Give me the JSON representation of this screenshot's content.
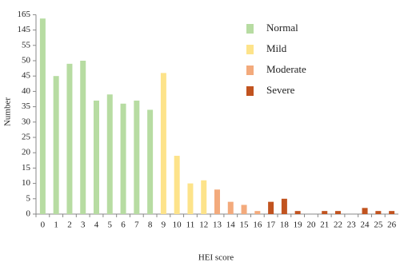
{
  "chart_data": {
    "type": "bar",
    "x_label": "HEI score",
    "y_label": "Number",
    "categories": [
      "0",
      "1",
      "2",
      "3",
      "4",
      "5",
      "6",
      "7",
      "8",
      "9",
      "10",
      "11",
      "12",
      "13",
      "14",
      "15",
      "16",
      "17",
      "18",
      "19",
      "20",
      "21",
      "22",
      "23",
      "24",
      "25",
      "26"
    ],
    "series": [
      {
        "name": "Normal",
        "color": "#b7dca2",
        "values": [
          160,
          45,
          49,
          50,
          37,
          39,
          36,
          37,
          34,
          null,
          null,
          null,
          null,
          null,
          null,
          null,
          null,
          null,
          null,
          null,
          null,
          null,
          null,
          null,
          null,
          null,
          null
        ]
      },
      {
        "name": "Mild",
        "color": "#fde38a",
        "values": [
          null,
          null,
          null,
          null,
          null,
          null,
          null,
          null,
          null,
          46,
          19,
          10,
          11,
          null,
          null,
          null,
          null,
          null,
          null,
          null,
          null,
          null,
          null,
          null,
          null,
          null,
          null
        ]
      },
      {
        "name": "Moderate",
        "color": "#f3aa7c",
        "values": [
          null,
          null,
          null,
          null,
          null,
          null,
          null,
          null,
          null,
          null,
          null,
          null,
          null,
          8,
          4,
          3,
          1,
          null,
          null,
          null,
          null,
          null,
          null,
          null,
          null,
          null,
          null
        ]
      },
      {
        "name": "Severe",
        "color": "#c1531f",
        "values": [
          null,
          null,
          null,
          null,
          null,
          null,
          null,
          null,
          null,
          null,
          null,
          null,
          null,
          null,
          null,
          null,
          null,
          4,
          5,
          1,
          0,
          1,
          1,
          0,
          2,
          1,
          1
        ]
      }
    ],
    "ylim": [
      0,
      165
    ],
    "yticks": [
      0,
      5,
      10,
      15,
      20,
      25,
      30,
      35,
      40,
      45,
      50,
      55,
      145,
      165
    ],
    "grid": false
  }
}
